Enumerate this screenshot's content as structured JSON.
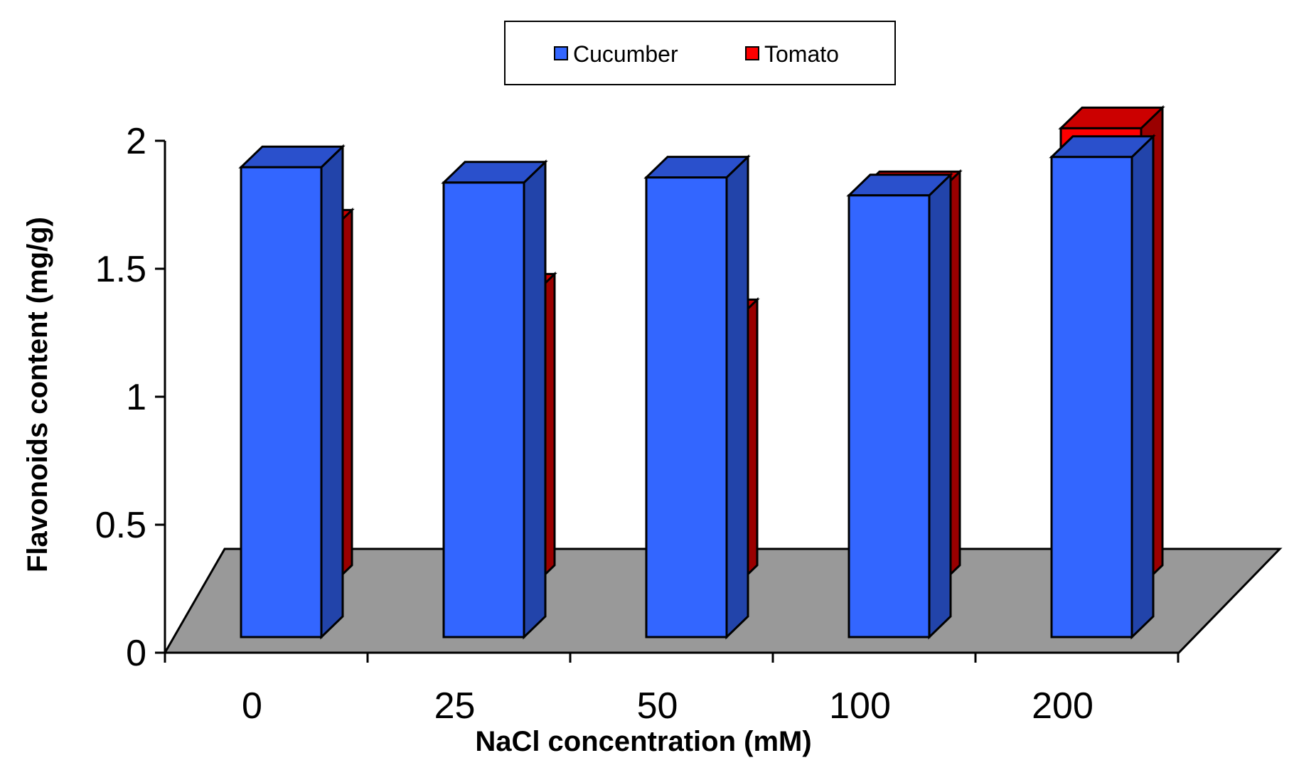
{
  "chart_data": {
    "type": "bar",
    "title": "",
    "xlabel": "NaCl concentration (mM)",
    "ylabel": "Flavonoids content (mg/g)",
    "categories": [
      "0",
      "25",
      "50",
      "100",
      "200"
    ],
    "series": [
      {
        "name": "Cucumber",
        "values": [
          1.93,
          1.87,
          1.89,
          1.82,
          1.97
        ]
      },
      {
        "name": "Tomato",
        "values": [
          1.56,
          1.31,
          1.21,
          1.71,
          1.96
        ]
      }
    ],
    "ylim": [
      0,
      2
    ],
    "yticks": [
      "0",
      "0.5",
      "1",
      "1.5",
      "2"
    ],
    "legend": "top-center",
    "colors": {
      "Cucumber": {
        "front": "#3366ff",
        "side": "#2244aa",
        "top": "#2a50cc"
      },
      "Tomato": {
        "front": "#ff0000",
        "side": "#9a0000",
        "top": "#cc0000"
      },
      "floor": "#999999"
    }
  }
}
